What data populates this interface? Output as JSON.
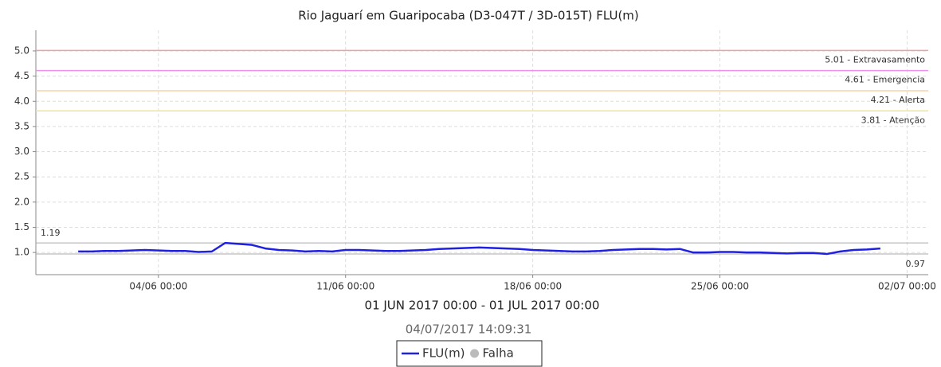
{
  "chart_data": {
    "type": "line",
    "title": "Rio Jaguarí em Guaripocaba (D3-047T / 3D-015T) FLU(m)",
    "x_label": "01 JUN 2017 00:00 - 01 JUL 2017 00:00",
    "subtitle": "04/07/2017 14:09:31",
    "x": [
      "2017-06-01T00:00",
      "2017-06-01T12:00",
      "2017-06-02T00:00",
      "2017-06-02T12:00",
      "2017-06-03T00:00",
      "2017-06-03T12:00",
      "2017-06-04T00:00",
      "2017-06-04T12:00",
      "2017-06-05T00:00",
      "2017-06-05T12:00",
      "2017-06-06T00:00",
      "2017-06-06T12:00",
      "2017-06-07T00:00",
      "2017-06-07T12:00",
      "2017-06-08T00:00",
      "2017-06-08T12:00",
      "2017-06-09T00:00",
      "2017-06-09T12:00",
      "2017-06-10T00:00",
      "2017-06-10T12:00",
      "2017-06-11T00:00",
      "2017-06-11T12:00",
      "2017-06-12T00:00",
      "2017-06-12T12:00",
      "2017-06-13T00:00",
      "2017-06-13T12:00",
      "2017-06-14T00:00",
      "2017-06-14T12:00",
      "2017-06-15T00:00",
      "2017-06-15T12:00",
      "2017-06-16T00:00",
      "2017-06-16T12:00",
      "2017-06-17T00:00",
      "2017-06-17T12:00",
      "2017-06-18T00:00",
      "2017-06-18T12:00",
      "2017-06-19T00:00",
      "2017-06-19T12:00",
      "2017-06-20T00:00",
      "2017-06-20T12:00",
      "2017-06-21T00:00",
      "2017-06-21T12:00",
      "2017-06-22T00:00",
      "2017-06-22T12:00",
      "2017-06-23T00:00",
      "2017-06-23T12:00",
      "2017-06-24T00:00",
      "2017-06-24T12:00",
      "2017-06-25T00:00",
      "2017-06-25T12:00",
      "2017-06-26T00:00",
      "2017-06-26T12:00",
      "2017-06-27T00:00",
      "2017-06-27T12:00",
      "2017-06-28T00:00",
      "2017-06-28T12:00",
      "2017-06-29T00:00",
      "2017-06-29T12:00",
      "2017-06-30T00:00",
      "2017-06-30T12:00",
      "2017-07-01T00:00"
    ],
    "series": [
      {
        "name": "FLU(m)",
        "color": "#2020e0",
        "values": [
          1.02,
          1.02,
          1.03,
          1.03,
          1.04,
          1.05,
          1.04,
          1.03,
          1.03,
          1.01,
          1.02,
          1.19,
          1.17,
          1.15,
          1.08,
          1.05,
          1.04,
          1.02,
          1.03,
          1.02,
          1.05,
          1.05,
          1.04,
          1.03,
          1.03,
          1.04,
          1.05,
          1.07,
          1.08,
          1.09,
          1.1,
          1.09,
          1.08,
          1.07,
          1.05,
          1.04,
          1.03,
          1.02,
          1.02,
          1.03,
          1.05,
          1.06,
          1.07,
          1.07,
          1.06,
          1.07,
          1.0,
          1.0,
          1.01,
          1.01,
          1.0,
          1.0,
          0.99,
          0.98,
          0.99,
          0.99,
          0.97,
          1.02,
          1.05,
          1.06,
          1.08
        ]
      }
    ],
    "failure_legend": {
      "name": "Falha",
      "color": "#bbbbbb"
    },
    "max": 1.19,
    "min": 0.97,
    "thresholds": [
      {
        "value": 5.01,
        "label": "5.01 - Extravasamento",
        "color": "#f2a0a0"
      },
      {
        "value": 4.61,
        "label": "4.61 - Emergencia",
        "color": "#ee90ee"
      },
      {
        "value": 4.21,
        "label": "4.21 - Alerta",
        "color": "#f8d2a8"
      },
      {
        "value": 3.81,
        "label": "3.81 - Atenção",
        "color": "#f0e68a"
      }
    ],
    "xlim": [
      "2017-05-30T10:00",
      "2017-07-02T19:00"
    ],
    "xticks": [
      {
        "value": "2017-06-04T00:00",
        "label": "04/06 00:00"
      },
      {
        "value": "2017-06-11T00:00",
        "label": "11/06 00:00"
      },
      {
        "value": "2017-06-18T00:00",
        "label": "18/06 00:00"
      },
      {
        "value": "2017-06-25T00:00",
        "label": "25/06 00:00"
      },
      {
        "value": "2017-07-02T00:00",
        "label": "02/07 00:00"
      }
    ],
    "ylim": [
      0.56,
      5.41
    ],
    "yticks": [
      {
        "value": 1,
        "label": "1.0"
      },
      1.5,
      {
        "value": 2,
        "label": "2.0"
      },
      2.5,
      {
        "value": 3,
        "label": "3.0"
      },
      3.5,
      {
        "value": 4,
        "label": "4.0"
      },
      4.5,
      {
        "value": 5,
        "label": "5.0"
      }
    ],
    "grid": true
  }
}
